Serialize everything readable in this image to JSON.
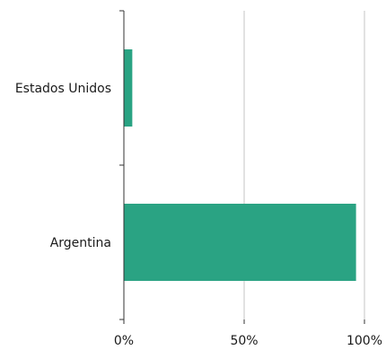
{
  "chart_data": {
    "type": "bar",
    "orientation": "horizontal",
    "categories": [
      "Estados Unidos",
      "Argentina"
    ],
    "values": [
      3.5,
      96.5
    ],
    "xlim": [
      0,
      100
    ],
    "x_ticks": [
      0,
      50,
      100
    ],
    "x_tick_labels": [
      "0%",
      "50%",
      "100%"
    ],
    "grid": "vertical",
    "bar_color": "#2aa383"
  }
}
